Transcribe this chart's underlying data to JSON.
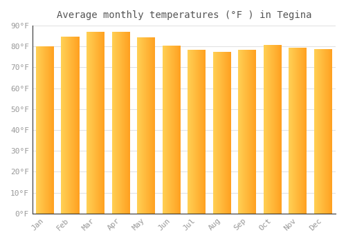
{
  "title": "Average monthly temperatures (°F ) in Tegina",
  "months": [
    "Jan",
    "Feb",
    "Mar",
    "Apr",
    "May",
    "Jun",
    "Jul",
    "Aug",
    "Sep",
    "Oct",
    "Nov",
    "Dec"
  ],
  "values": [
    80.1,
    84.7,
    86.9,
    87.1,
    84.3,
    80.3,
    78.4,
    77.5,
    78.4,
    80.6,
    79.5,
    78.8
  ],
  "bar_color_left": "#FFD055",
  "bar_color_right": "#FFA020",
  "ylim": [
    0,
    90
  ],
  "yticks": [
    0,
    10,
    20,
    30,
    40,
    50,
    60,
    70,
    80,
    90
  ],
  "ytick_labels": [
    "0°F",
    "10°F",
    "20°F",
    "30°F",
    "40°F",
    "50°F",
    "60°F",
    "70°F",
    "80°F",
    "90°F"
  ],
  "background_color": "#FFFFFF",
  "grid_color": "#E0E0E0",
  "title_fontsize": 10,
  "tick_fontsize": 8,
  "font_color": "#999999",
  "bar_width": 0.72,
  "n_gradient_steps": 100
}
